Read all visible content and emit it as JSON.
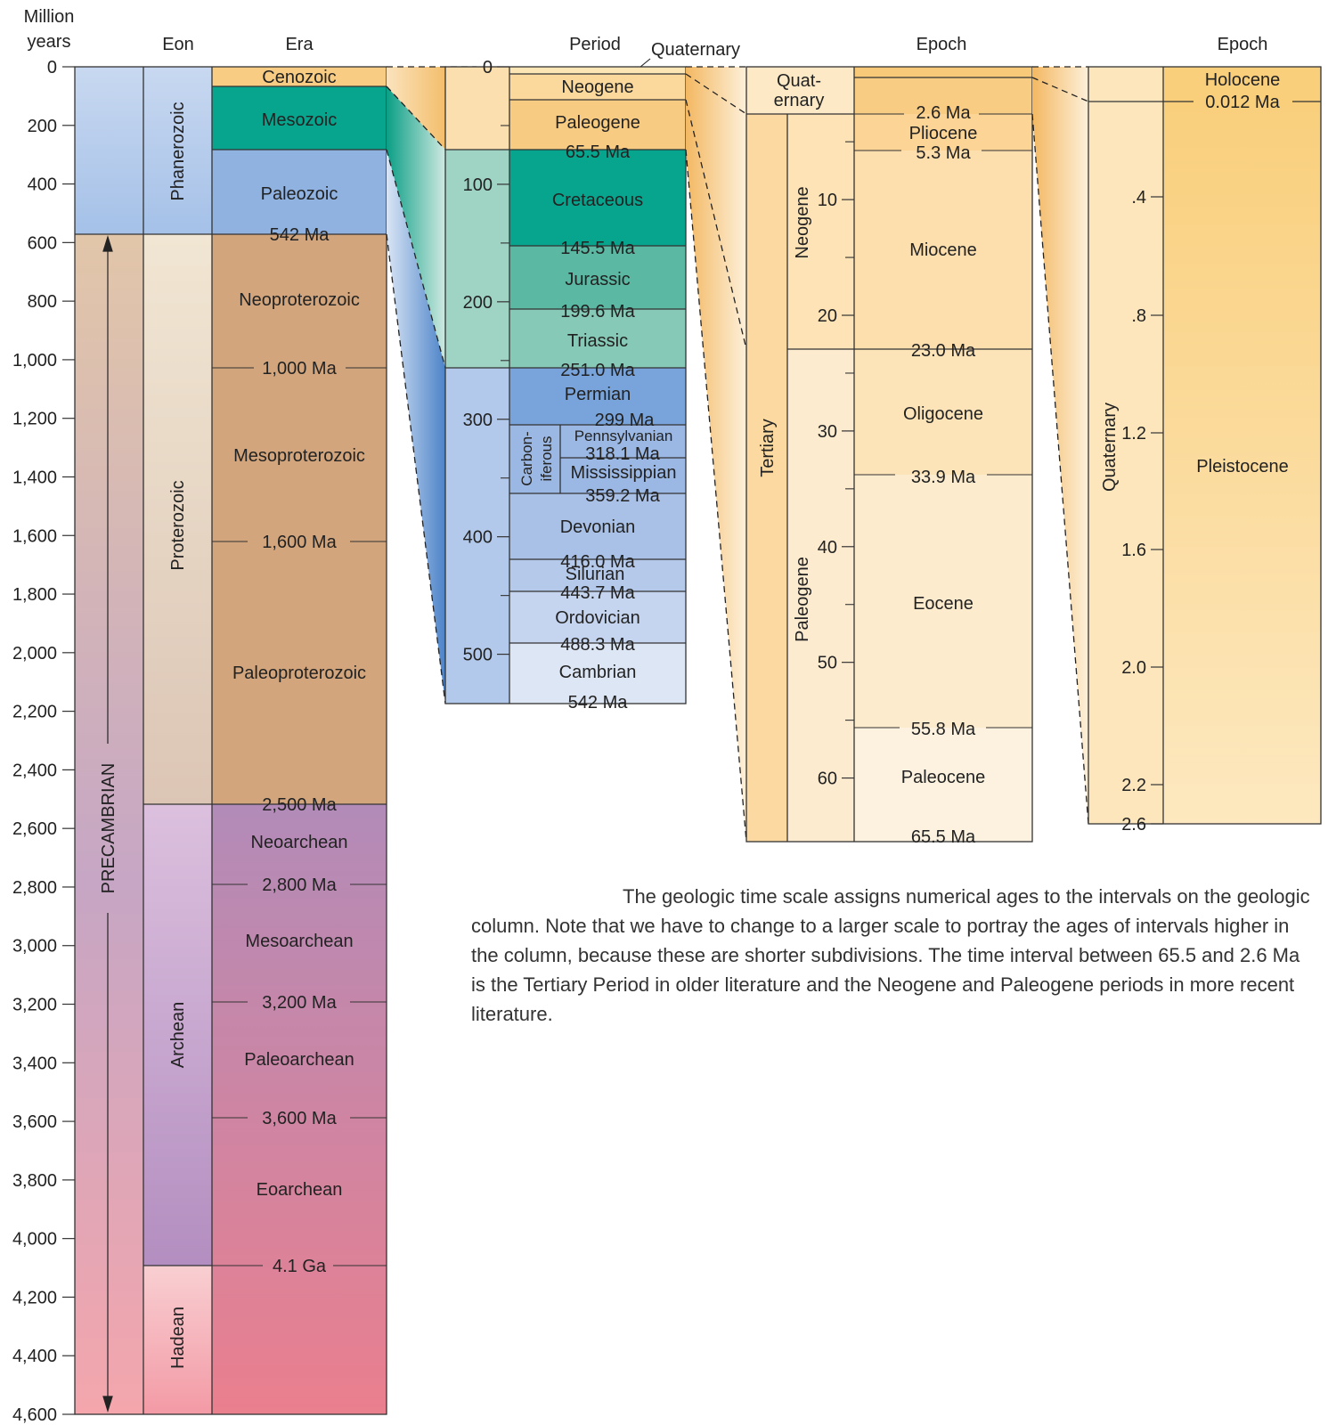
{
  "colors": {
    "cenozoic": "#f8cd83",
    "mesozoic": "#08a58e",
    "paleozoic": "#8fb2e0",
    "proterozoic_era": "#d2a57c",
    "archean_era": "#b087b6",
    "hadean_era": "#ec7f8e",
    "quaternary": "#fde6b6",
    "neogene": "#fde1ad",
    "paleogene_light": "#fdebd0",
    "holocene": "#fad386",
    "pleistocene": "#fbe0a8"
  },
  "column1": {
    "header": {
      "units_line1": "Million",
      "units_line2": "years",
      "eon": "Eon",
      "era": "Era"
    },
    "axis_ticks": [
      "0",
      "200",
      "400",
      "600",
      "800",
      "1,000",
      "1,200",
      "1,400",
      "1,600",
      "1,800",
      "2,000",
      "2,200",
      "2,400",
      "2,600",
      "2,800",
      "3,000",
      "3,200",
      "3,400",
      "3,600",
      "3,800",
      "4,000",
      "4,200",
      "4,400",
      "4,600"
    ],
    "supereon": "PRECAMBRIAN",
    "eons": [
      "Phanerozoic",
      "Proterozoic",
      "Archean",
      "Hadean"
    ],
    "eras": [
      "Cenozoic",
      "Mesozoic",
      "Paleozoic",
      "Neoproterozoic",
      "Mesoproterozoic",
      "Paleoproterozoic",
      "Neoarchean",
      "Mesoarchean",
      "Paleoarchean",
      "Eoarchean"
    ],
    "boundaries": [
      "542 Ma",
      "1,000 Ma",
      "1,600 Ma",
      "2,500 Ma",
      "2,800 Ma",
      "3,200 Ma",
      "3,600 Ma",
      "4.1 Ga"
    ]
  },
  "column2": {
    "header": {
      "period": "Period",
      "quaternary": "Quaternary"
    },
    "axis_ticks": [
      "0",
      "100",
      "200",
      "300",
      "400",
      "500"
    ],
    "periods": [
      "Neogene",
      "Paleogene",
      "Cretaceous",
      "Jurassic",
      "Triassic",
      "Permian",
      "Devonian",
      "Silurian",
      "Ordovician",
      "Cambrian"
    ],
    "carboniferous": [
      "Carbon-",
      "iferous"
    ],
    "subperiods": [
      "Pennsylvanian",
      "Mississippian"
    ],
    "boundaries": [
      "65.5 Ma",
      "145.5 Ma",
      "199.6 Ma",
      "251.0 Ma",
      "299 Ma",
      "318.1 Ma",
      "359.2 Ma",
      "416.0 Ma",
      "443.7 Ma",
      "488.3 Ma",
      "542 Ma"
    ]
  },
  "column3": {
    "header": {
      "epoch": "Epoch"
    },
    "axis_ticks": [
      "10",
      "20",
      "30",
      "40",
      "50",
      "60"
    ],
    "quaternary": [
      "Quat-",
      "ernary"
    ],
    "tertiary": "Tertiary",
    "sub": [
      "Neogene",
      "Paleogene"
    ],
    "epochs": [
      "Pliocene",
      "Miocene",
      "Oligocene",
      "Eocene",
      "Paleocene"
    ],
    "boundaries": [
      "2.6 Ma",
      "5.3 Ma",
      "23.0 Ma",
      "33.9 Ma",
      "55.8 Ma",
      "65.5 Ma"
    ]
  },
  "column4": {
    "header": {
      "epoch": "Epoch"
    },
    "axis_ticks": [
      ".4",
      ".8",
      "1.2",
      "1.6",
      "2.0",
      "2.2",
      "2.6"
    ],
    "period": "Quaternary",
    "epochs": [
      "Holocene",
      "Pleistocene"
    ],
    "boundary": "0.012 Ma"
  },
  "caption": "The geologic time scale assigns numerical ages to the intervals on the geologic column. Note that we have to change to a larger scale to portray the ages of intervals higher in the column, because these are shorter subdivisions. The time interval between 65.5 and 2.6 Ma is the Tertiary Period in older literature and the Neogene and Paleogene periods in more recent literature."
}
